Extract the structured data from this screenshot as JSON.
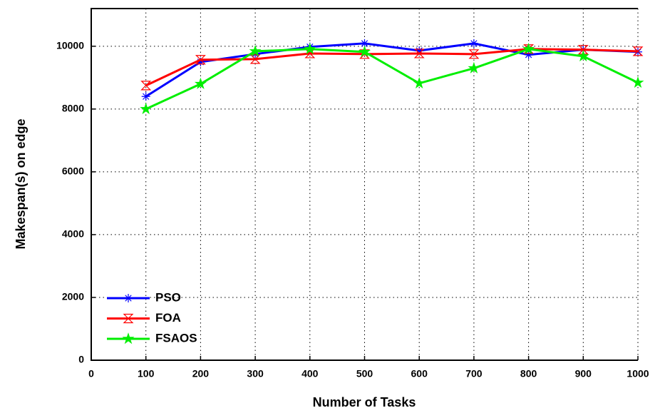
{
  "chart_data": {
    "type": "line",
    "x_label": "Number of Tasks",
    "y_label": "Makespan(s) on edge",
    "x": [
      100,
      200,
      300,
      400,
      500,
      600,
      700,
      800,
      900,
      1000
    ],
    "series": [
      {
        "name": "PSO",
        "color": "#0000ff",
        "marker": "asterisk",
        "values": [
          8400,
          9500,
          9750,
          9980,
          10090,
          9860,
          10090,
          9730,
          9890,
          9820
        ]
      },
      {
        "name": "FOA",
        "color": "#ff0000",
        "marker": "hourglass",
        "values": [
          8750,
          9570,
          9590,
          9770,
          9750,
          9770,
          9750,
          9910,
          9890,
          9840
        ]
      },
      {
        "name": "FSAOS",
        "color": "#00ee00",
        "marker": "star",
        "values": [
          8000,
          8800,
          9840,
          9910,
          9820,
          8820,
          9300,
          9910,
          9680,
          8840
        ]
      }
    ],
    "xlim": [
      0,
      1000
    ],
    "xticks": [
      0,
      100,
      200,
      300,
      400,
      500,
      600,
      700,
      800,
      900,
      1000
    ],
    "ylim": [
      0,
      11200
    ],
    "yticks": [
      0,
      2000,
      4000,
      6000,
      8000,
      10000
    ],
    "grid": true,
    "legend": "lower left"
  }
}
